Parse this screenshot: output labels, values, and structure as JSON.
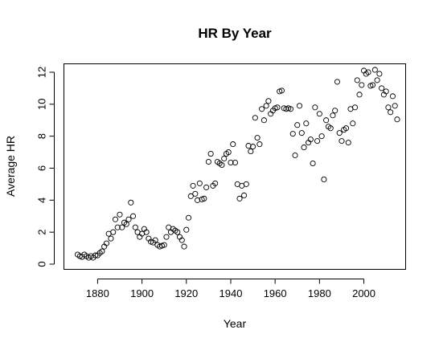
{
  "chart_data": {
    "type": "scatter",
    "title": "HR By Year",
    "xlabel": "Year",
    "ylabel": "Average HR",
    "xlim": [
      1865,
      2019
    ],
    "ylim": [
      -0.3,
      12.5
    ],
    "xticks": [
      1880,
      1900,
      1920,
      1940,
      1960,
      1980,
      2000
    ],
    "yticks": [
      0,
      2,
      4,
      6,
      8,
      10,
      12
    ],
    "grid": false,
    "marker": "open-circle",
    "points": [
      [
        1871,
        0.6
      ],
      [
        1872,
        0.5
      ],
      [
        1873,
        0.45
      ],
      [
        1874,
        0.6
      ],
      [
        1875,
        0.5
      ],
      [
        1876,
        0.4
      ],
      [
        1877,
        0.5
      ],
      [
        1878,
        0.4
      ],
      [
        1879,
        0.55
      ],
      [
        1880,
        0.55
      ],
      [
        1881,
        0.7
      ],
      [
        1882,
        0.8
      ],
      [
        1883,
        1.1
      ],
      [
        1884,
        1.3
      ],
      [
        1885,
        1.9
      ],
      [
        1886,
        1.6
      ],
      [
        1887,
        2.0
      ],
      [
        1888,
        2.8
      ],
      [
        1889,
        2.3
      ],
      [
        1890,
        3.1
      ],
      [
        1891,
        2.3
      ],
      [
        1892,
        2.6
      ],
      [
        1893,
        2.5
      ],
      [
        1894,
        2.8
      ],
      [
        1895,
        3.85
      ],
      [
        1896,
        3.0
      ],
      [
        1897,
        2.3
      ],
      [
        1898,
        2.0
      ],
      [
        1899,
        1.7
      ],
      [
        1900,
        1.9
      ],
      [
        1901,
        2.2
      ],
      [
        1902,
        2.0
      ],
      [
        1903,
        1.6
      ],
      [
        1904,
        1.4
      ],
      [
        1905,
        1.35
      ],
      [
        1906,
        1.5
      ],
      [
        1907,
        1.2
      ],
      [
        1908,
        1.1
      ],
      [
        1909,
        1.15
      ],
      [
        1910,
        1.2
      ],
      [
        1911,
        1.7
      ],
      [
        1912,
        2.3
      ],
      [
        1913,
        2.0
      ],
      [
        1914,
        2.2
      ],
      [
        1915,
        2.1
      ],
      [
        1916,
        2.0
      ],
      [
        1917,
        1.7
      ],
      [
        1918,
        1.5
      ],
      [
        1919,
        1.1
      ],
      [
        1920,
        2.15
      ],
      [
        1921,
        2.9
      ],
      [
        1922,
        4.25
      ],
      [
        1923,
        4.9
      ],
      [
        1924,
        4.4
      ],
      [
        1925,
        4.0
      ],
      [
        1926,
        5.05
      ],
      [
        1927,
        4.05
      ],
      [
        1928,
        4.1
      ],
      [
        1929,
        4.8
      ],
      [
        1930,
        6.4
      ],
      [
        1931,
        6.9
      ],
      [
        1932,
        4.9
      ],
      [
        1933,
        5.05
      ],
      [
        1934,
        6.4
      ],
      [
        1935,
        6.3
      ],
      [
        1936,
        6.2
      ],
      [
        1937,
        6.6
      ],
      [
        1938,
        6.9
      ],
      [
        1939,
        7.0
      ],
      [
        1940,
        6.35
      ],
      [
        1941,
        7.5
      ],
      [
        1942,
        6.35
      ],
      [
        1943,
        5.0
      ],
      [
        1944,
        4.1
      ],
      [
        1945,
        4.9
      ],
      [
        1946,
        4.3
      ],
      [
        1947,
        5.0
      ],
      [
        1948,
        7.4
      ],
      [
        1949,
        7.05
      ],
      [
        1950,
        7.35
      ],
      [
        1951,
        9.15
      ],
      [
        1952,
        7.9
      ],
      [
        1953,
        7.5
      ],
      [
        1954,
        9.7
      ],
      [
        1955,
        9.0
      ],
      [
        1956,
        9.9
      ],
      [
        1957,
        10.2
      ],
      [
        1958,
        9.4
      ],
      [
        1959,
        9.6
      ],
      [
        1960,
        9.75
      ],
      [
        1961,
        9.8
      ],
      [
        1962,
        10.8
      ],
      [
        1963,
        10.85
      ],
      [
        1964,
        9.75
      ],
      [
        1965,
        9.7
      ],
      [
        1966,
        9.75
      ],
      [
        1967,
        9.7
      ],
      [
        1968,
        8.15
      ],
      [
        1969,
        6.8
      ],
      [
        1970,
        8.7
      ],
      [
        1971,
        9.9
      ],
      [
        1972,
        8.2
      ],
      [
        1973,
        7.3
      ],
      [
        1974,
        8.8
      ],
      [
        1975,
        7.6
      ],
      [
        1976,
        7.8
      ],
      [
        1977,
        6.3
      ],
      [
        1978,
        9.8
      ],
      [
        1979,
        7.7
      ],
      [
        1980,
        9.4
      ],
      [
        1981,
        8.0
      ],
      [
        1982,
        5.3
      ],
      [
        1983,
        9.0
      ],
      [
        1984,
        8.6
      ],
      [
        1985,
        8.5
      ],
      [
        1986,
        9.3
      ],
      [
        1987,
        9.6
      ],
      [
        1988,
        11.4
      ],
      [
        1989,
        8.2
      ],
      [
        1990,
        7.7
      ],
      [
        1991,
        8.4
      ],
      [
        1992,
        8.5
      ],
      [
        1993,
        7.6
      ],
      [
        1994,
        9.7
      ],
      [
        1995,
        8.8
      ],
      [
        1996,
        9.8
      ],
      [
        1997,
        11.5
      ],
      [
        1998,
        10.6
      ],
      [
        1999,
        11.2
      ],
      [
        2000,
        12.1
      ],
      [
        2001,
        11.9
      ],
      [
        2002,
        12.0
      ],
      [
        2003,
        11.15
      ],
      [
        2004,
        11.2
      ],
      [
        2005,
        12.15
      ],
      [
        2006,
        11.5
      ],
      [
        2007,
        11.9
      ],
      [
        2008,
        11.0
      ],
      [
        2009,
        10.6
      ],
      [
        2010,
        10.8
      ],
      [
        2011,
        9.8
      ],
      [
        2012,
        9.5
      ],
      [
        2013,
        10.5
      ],
      [
        2014,
        9.9
      ],
      [
        2015,
        9.05
      ]
    ]
  }
}
